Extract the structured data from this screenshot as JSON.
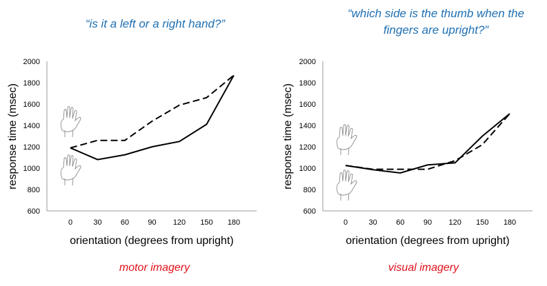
{
  "colors": {
    "question": "#1f6fb2",
    "condition": "#e0101a",
    "line": "#000000",
    "axis": "#9a9a9a",
    "hand": "#8c8c8c"
  },
  "icons": [
    "hand-icon"
  ],
  "chart_data": [
    {
      "type": "line",
      "title": "“is it a left or a right hand?”",
      "condition": "motor imagery",
      "xlabel": "orientation (degrees from upright)",
      "ylabel": "response time (msec)",
      "x": [
        0,
        30,
        60,
        90,
        120,
        150,
        180
      ],
      "xticks": [
        "0",
        "30",
        "60",
        "90",
        "120",
        "150",
        "180"
      ],
      "yticks": [
        "600",
        "800",
        "1000",
        "1200",
        "1400",
        "1600",
        "1800",
        "2000"
      ],
      "xlim": [
        -30,
        210
      ],
      "ylim": [
        600,
        2000
      ],
      "grid": false,
      "legend": "none",
      "series": [
        {
          "style": "solid",
          "values": [
            1190,
            1080,
            1125,
            1200,
            1250,
            1410,
            1870
          ]
        },
        {
          "style": "dashed",
          "values": [
            1190,
            1260,
            1260,
            1440,
            1590,
            1660,
            1870
          ]
        }
      ]
    },
    {
      "type": "line",
      "title": "“which side is the thumb when the fingers are upright?”",
      "title_lines": [
        "“which side is the thumb when the",
        "fingers are upright?”"
      ],
      "condition": "visual imagery",
      "xlabel": "orientation (degrees from upright)",
      "ylabel": "response time (msec)",
      "x": [
        0,
        30,
        60,
        90,
        120,
        150,
        180
      ],
      "xticks": [
        "0",
        "30",
        "60",
        "90",
        "120",
        "150",
        "180"
      ],
      "yticks": [
        "600",
        "800",
        "1000",
        "1200",
        "1400",
        "1600",
        "1800",
        "2000"
      ],
      "xlim": [
        -30,
        210
      ],
      "ylim": [
        600,
        2000
      ],
      "grid": false,
      "legend": "none",
      "series": [
        {
          "style": "solid",
          "values": [
            1025,
            985,
            955,
            1030,
            1050,
            1300,
            1510
          ]
        },
        {
          "style": "dashed",
          "values": [
            1025,
            990,
            990,
            990,
            1070,
            1220,
            1510
          ]
        }
      ]
    }
  ]
}
